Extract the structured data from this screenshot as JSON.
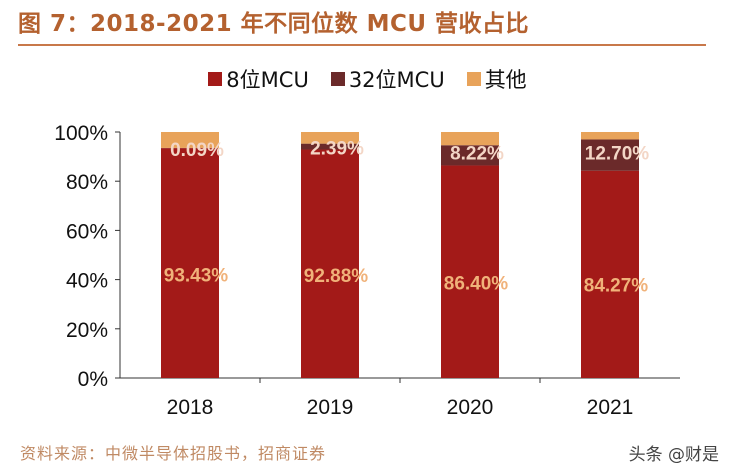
{
  "title": "图 7：2018-2021 年不同位数 MCU 营收占比",
  "source": "资料来源：中微半导体招股书，招商证券",
  "watermark": "头条 @财是",
  "chart_data": {
    "type": "bar",
    "stacked": true,
    "categories": [
      "2018",
      "2019",
      "2020",
      "2021"
    ],
    "series": [
      {
        "name": "8位MCU",
        "color": "#a31a18",
        "values": [
          93.43,
          92.88,
          86.4,
          84.27
        ],
        "labels": [
          "93.43%",
          "92.88%",
          "86.40%",
          "84.27%"
        ]
      },
      {
        "name": "32位MCU",
        "color": "#6b2a2a",
        "values": [
          0.09,
          2.39,
          8.22,
          12.7
        ],
        "labels": [
          "0.09%",
          "2.39%",
          "8.22%",
          "12.70%"
        ]
      },
      {
        "name": "其他",
        "color": "#e8a35a",
        "values": [
          6.48,
          4.73,
          5.38,
          3.03
        ],
        "labels": []
      }
    ],
    "ylim": [
      0,
      100
    ],
    "yticks": [
      "0%",
      "20%",
      "40%",
      "60%",
      "80%",
      "100%"
    ],
    "ytick_values": [
      0,
      20,
      40,
      60,
      80,
      100
    ],
    "legend_position": "top",
    "grid": false
  }
}
